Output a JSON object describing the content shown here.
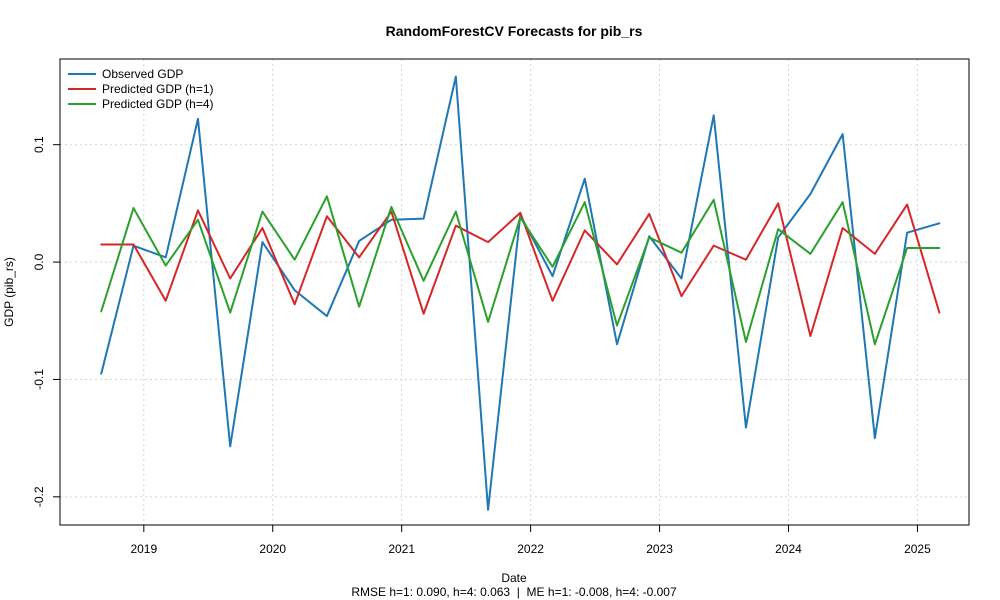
{
  "chart_data": {
    "type": "line",
    "title": "RandomForestCV Forecasts for pib_rs",
    "xlabel": "Date",
    "ylabel": "GDP (pib_rs)",
    "footer": "RMSE h=1: 0.090, h=4: 0.063  |  ME h=1: -0.008, h=4: -0.007",
    "x_ticks": [
      {
        "label": "2019",
        "value": 2019.0
      },
      {
        "label": "2020",
        "value": 2020.0
      },
      {
        "label": "2021",
        "value": 2021.0
      },
      {
        "label": "2022",
        "value": 2022.0
      },
      {
        "label": "2023",
        "value": 2023.0
      },
      {
        "label": "2024",
        "value": 2024.0
      },
      {
        "label": "2025",
        "value": 2025.0
      }
    ],
    "y_ticks": [
      {
        "label": "-0.2",
        "value": -0.2
      },
      {
        "label": "-0.1",
        "value": -0.1
      },
      {
        "label": "0.0",
        "value": 0.0
      },
      {
        "label": "0.1",
        "value": 0.1
      }
    ],
    "xlim": [
      2018.35,
      2025.4
    ],
    "ylim": [
      -0.224,
      0.173
    ],
    "grid": true,
    "legend_position": "top-left",
    "x": [
      2018.67,
      2018.92,
      2019.17,
      2019.42,
      2019.67,
      2019.92,
      2020.17,
      2020.42,
      2020.67,
      2020.92,
      2021.17,
      2021.42,
      2021.67,
      2021.92,
      2022.17,
      2022.42,
      2022.67,
      2022.92,
      2023.17,
      2023.42,
      2023.67,
      2023.92,
      2024.17,
      2024.42,
      2024.67,
      2024.92,
      2025.17
    ],
    "series": [
      {
        "name": "Observed GDP",
        "color": "#1f77b4",
        "values": [
          -0.095,
          0.014,
          0.004,
          0.122,
          -0.157,
          0.017,
          -0.024,
          -0.046,
          0.018,
          0.036,
          0.037,
          0.158,
          -0.211,
          0.04,
          -0.012,
          0.071,
          -0.07,
          0.022,
          -0.014,
          0.125,
          -0.141,
          0.021,
          0.058,
          0.109,
          -0.15,
          0.025,
          0.033
        ]
      },
      {
        "name": "Predicted GDP (h=1)",
        "color": "#d62728",
        "values": [
          0.015,
          0.015,
          -0.033,
          0.044,
          -0.014,
          0.029,
          -0.036,
          0.039,
          0.004,
          0.043,
          -0.044,
          0.031,
          0.017,
          0.042,
          -0.033,
          0.027,
          -0.002,
          0.041,
          -0.029,
          0.014,
          0.002,
          0.05,
          -0.063,
          0.029,
          0.007,
          0.049,
          -0.043
        ]
      },
      {
        "name": "Predicted GDP (h=4)",
        "color": "#2ca02c",
        "values": [
          -0.042,
          0.046,
          -0.003,
          0.036,
          -0.043,
          0.043,
          0.002,
          0.056,
          -0.038,
          0.047,
          -0.016,
          0.043,
          -0.051,
          0.038,
          -0.004,
          0.051,
          -0.054,
          0.021,
          0.008,
          0.053,
          -0.068,
          0.028,
          0.007,
          0.051,
          -0.07,
          0.012,
          0.012
        ]
      }
    ]
  }
}
